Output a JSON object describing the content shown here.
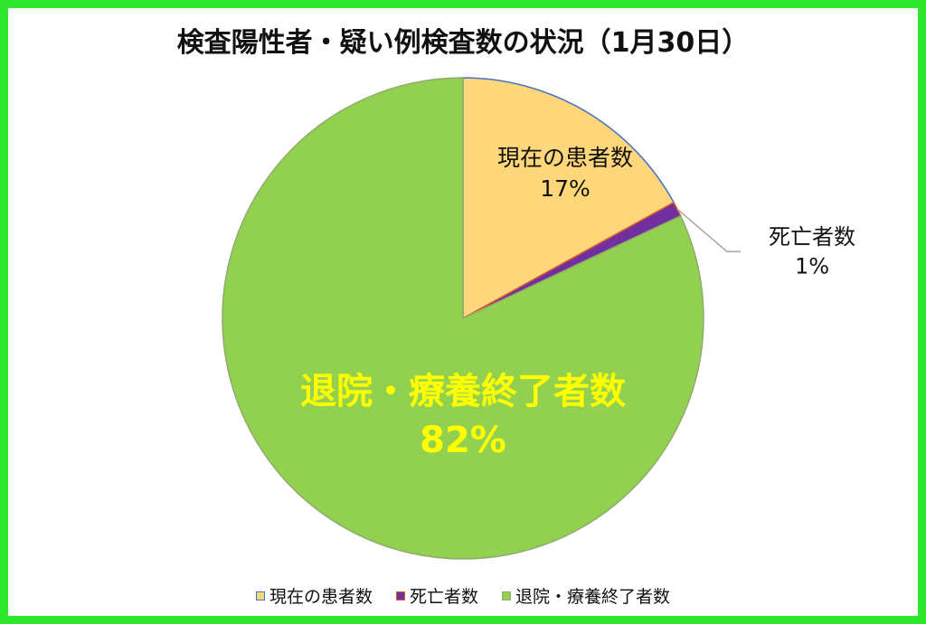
{
  "chart_data": {
    "type": "pie",
    "title": "検査陽性者・疑い例検査数の状況（1月30日）",
    "slices": [
      {
        "label": "現在の患者数",
        "value": 17,
        "value_label": "17%",
        "color": "#ffd77a",
        "border": "#4472c4",
        "label_color": "#111111"
      },
      {
        "label": "死亡者数",
        "value": 1,
        "value_label": "1%",
        "color": "#7030a0",
        "border": "#e05a1e",
        "label_color": "#111111"
      },
      {
        "label": "退院・療養終了者数",
        "value": 82,
        "value_label": "82%",
        "color": "#92d050",
        "border": "#8faa6e",
        "label_color": "#ffff00"
      }
    ],
    "legend": {
      "position": "bottom",
      "items": [
        "現在の患者数",
        "死亡者数",
        "退院・療養終了者数"
      ]
    }
  },
  "colors": {
    "frame": "#2ee82e",
    "background": "#ffffff"
  }
}
